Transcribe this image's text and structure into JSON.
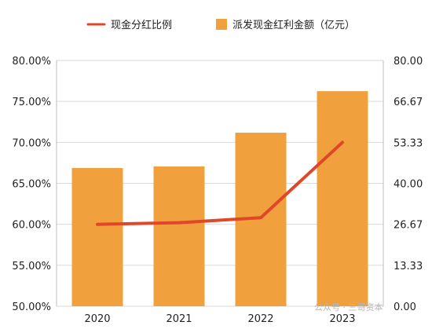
{
  "chart_data": {
    "type": "bar",
    "categories": [
      "2020",
      "2021",
      "2022",
      "2023"
    ],
    "series": [
      {
        "name": "派发现金红利金额（亿元）",
        "chart": "bar",
        "axis": "right",
        "color": "#f0a03c",
        "values": [
          45.0,
          45.5,
          56.5,
          70.0
        ]
      },
      {
        "name": "现金分红比例",
        "chart": "line",
        "axis": "left",
        "color": "#e04628",
        "values": [
          0.6,
          0.602,
          0.608,
          0.7
        ]
      }
    ],
    "y_left": {
      "min": 0.5,
      "max": 0.8,
      "ticks": [
        "80.00%",
        "75.00%",
        "70.00%",
        "65.00%",
        "60.00%",
        "55.00%",
        "50.00%"
      ]
    },
    "y_right": {
      "min": 0,
      "max": 80,
      "ticks": [
        "80.00",
        "66.67",
        "53.33",
        "40.00",
        "26.67",
        "13.33",
        "0.00"
      ]
    },
    "legend_position": "top",
    "grid": true
  },
  "watermark": "公众号 · 三哥资本"
}
